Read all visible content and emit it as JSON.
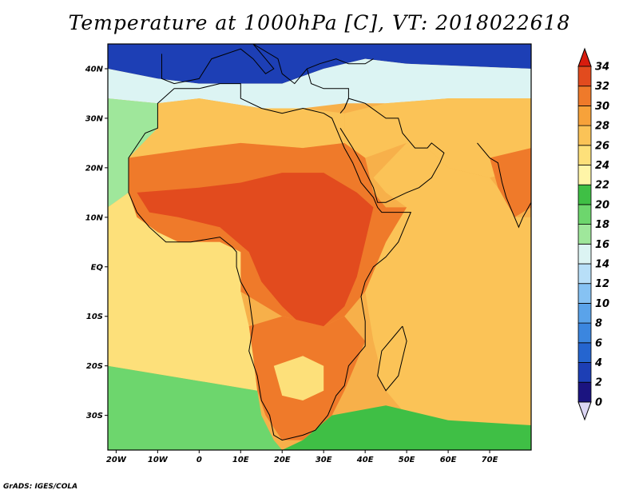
{
  "title": "Temperature at 1000hPa [C], VT: 2018022618",
  "credit": "GrADS: IGES/COLA",
  "map": {
    "lon_range": [
      -22,
      80
    ],
    "lat_range": [
      -37,
      45
    ],
    "lat_ticks": [
      {
        "value": 40,
        "label": "40N"
      },
      {
        "value": 30,
        "label": "30N"
      },
      {
        "value": 20,
        "label": "20N"
      },
      {
        "value": 10,
        "label": "10N"
      },
      {
        "value": 0,
        "label": "EQ"
      },
      {
        "value": -10,
        "label": "10S"
      },
      {
        "value": -20,
        "label": "20S"
      },
      {
        "value": -30,
        "label": "30S"
      }
    ],
    "lon_ticks": [
      {
        "value": -20,
        "label": "20W"
      },
      {
        "value": -10,
        "label": "10W"
      },
      {
        "value": 0,
        "label": "0"
      },
      {
        "value": 10,
        "label": "10E"
      },
      {
        "value": 20,
        "label": "20E"
      },
      {
        "value": 30,
        "label": "30E"
      },
      {
        "value": 40,
        "label": "40E"
      },
      {
        "value": 50,
        "label": "50E"
      },
      {
        "value": 60,
        "label": "60E"
      },
      {
        "value": 70,
        "label": "70E"
      }
    ]
  },
  "colorbar": {
    "levels": [
      0,
      2,
      4,
      6,
      8,
      10,
      12,
      14,
      16,
      18,
      20,
      22,
      24,
      26,
      28,
      30,
      32,
      34
    ],
    "colors": [
      "#1b1480",
      "#1d3fb5",
      "#2565cf",
      "#3b86df",
      "#5aa3ea",
      "#86c2f3",
      "#b8dff8",
      "#dcf4f3",
      "#9fe79b",
      "#6dd66d",
      "#3fbf45",
      "#fff5a8",
      "#fde07a",
      "#fbc357",
      "#f7a23a",
      "#ef7a2a",
      "#e24b1e",
      "#cf2012"
    ],
    "under_color": "#dcd6f4",
    "over_color": "#d81c0e"
  },
  "regions": [
    {
      "name": "europe",
      "temp": 2,
      "points": [
        [
          -22,
          45
        ],
        [
          80,
          45
        ],
        [
          80,
          40
        ],
        [
          50,
          41
        ],
        [
          40,
          42
        ],
        [
          30,
          40
        ],
        [
          20,
          37
        ],
        [
          10,
          37
        ],
        [
          0,
          37
        ],
        [
          -10,
          38
        ],
        [
          -22,
          40
        ]
      ]
    },
    {
      "name": "mediterranean",
      "temp": 15,
      "points": [
        [
          -22,
          40
        ],
        [
          -10,
          38
        ],
        [
          0,
          37
        ],
        [
          10,
          37
        ],
        [
          20,
          37
        ],
        [
          30,
          40
        ],
        [
          40,
          42
        ],
        [
          50,
          41
        ],
        [
          80,
          40
        ],
        [
          80,
          34
        ],
        [
          60,
          34
        ],
        [
          45,
          33
        ],
        [
          35,
          33
        ],
        [
          25,
          32
        ],
        [
          15,
          32
        ],
        [
          0,
          34
        ],
        [
          -10,
          33
        ],
        [
          -22,
          34
        ]
      ]
    },
    {
      "name": "north-atlantic",
      "temp": 17,
      "points": [
        [
          -22,
          34
        ],
        [
          -10,
          33
        ],
        [
          -10,
          28
        ],
        [
          -17,
          22
        ],
        [
          -17,
          15
        ],
        [
          -22,
          12
        ]
      ]
    },
    {
      "name": "sahara-north",
      "temp": 27,
      "points": [
        [
          -10,
          33
        ],
        [
          0,
          34
        ],
        [
          15,
          32
        ],
        [
          25,
          32
        ],
        [
          35,
          31
        ],
        [
          35,
          25
        ],
        [
          25,
          24
        ],
        [
          10,
          25
        ],
        [
          0,
          24
        ],
        [
          -17,
          22
        ],
        [
          -10,
          28
        ]
      ]
    },
    {
      "name": "middle-east",
      "temp": 26,
      "points": [
        [
          35,
          31
        ],
        [
          45,
          33
        ],
        [
          60,
          34
        ],
        [
          80,
          34
        ],
        [
          80,
          20
        ],
        [
          70,
          18
        ],
        [
          60,
          20
        ],
        [
          55,
          24
        ],
        [
          50,
          25
        ],
        [
          40,
          22
        ],
        [
          35,
          25
        ]
      ]
    },
    {
      "name": "india",
      "temp": 30,
      "points": [
        [
          70,
          22
        ],
        [
          80,
          24
        ],
        [
          80,
          12
        ],
        [
          76,
          10
        ],
        [
          72,
          16
        ]
      ]
    },
    {
      "name": "arabian-sea",
      "temp": 26,
      "points": [
        [
          50,
          25
        ],
        [
          55,
          24
        ],
        [
          60,
          20
        ],
        [
          70,
          18
        ],
        [
          72,
          16
        ],
        [
          76,
          10
        ],
        [
          80,
          10
        ],
        [
          80,
          -37
        ],
        [
          60,
          -37
        ],
        [
          50,
          -30
        ],
        [
          45,
          -25
        ],
        [
          42,
          -15
        ],
        [
          40,
          -5
        ],
        [
          45,
          5
        ],
        [
          50,
          12
        ],
        [
          45,
          15
        ],
        [
          42,
          18
        ]
      ]
    },
    {
      "name": "sahel",
      "temp": 31,
      "points": [
        [
          -17,
          22
        ],
        [
          0,
          24
        ],
        [
          10,
          25
        ],
        [
          25,
          24
        ],
        [
          35,
          25
        ],
        [
          40,
          22
        ],
        [
          42,
          15
        ],
        [
          45,
          12
        ],
        [
          50,
          12
        ],
        [
          45,
          5
        ],
        [
          40,
          -5
        ],
        [
          35,
          -10
        ],
        [
          30,
          -12
        ],
        [
          20,
          -10
        ],
        [
          10,
          -5
        ],
        [
          10,
          3
        ],
        [
          5,
          5
        ],
        [
          -5,
          5
        ],
        [
          -10,
          7
        ],
        [
          -15,
          10
        ],
        [
          -17,
          15
        ]
      ]
    },
    {
      "name": "central-africa",
      "temp": 33,
      "points": [
        [
          -15,
          15
        ],
        [
          0,
          16
        ],
        [
          10,
          17
        ],
        [
          20,
          19
        ],
        [
          30,
          19
        ],
        [
          38,
          15
        ],
        [
          42,
          12
        ],
        [
          40,
          5
        ],
        [
          38,
          -2
        ],
        [
          35,
          -8
        ],
        [
          30,
          -12
        ],
        [
          25,
          -12
        ],
        [
          20,
          -8
        ],
        [
          15,
          -3
        ],
        [
          12,
          3
        ],
        [
          5,
          8
        ],
        [
          -5,
          10
        ],
        [
          -12,
          11
        ]
      ]
    },
    {
      "name": "south-atlantic",
      "temp": 25,
      "points": [
        [
          -22,
          12
        ],
        [
          -17,
          15
        ],
        [
          -15,
          10
        ],
        [
          -10,
          7
        ],
        [
          -5,
          5
        ],
        [
          5,
          5
        ],
        [
          10,
          3
        ],
        [
          10,
          -5
        ],
        [
          12,
          -12
        ],
        [
          13,
          -18
        ],
        [
          14,
          -25
        ],
        [
          -22,
          -20
        ]
      ]
    },
    {
      "name": "south-atlantic-cool",
      "temp": 19,
      "points": [
        [
          -22,
          -20
        ],
        [
          14,
          -25
        ],
        [
          15,
          -30
        ],
        [
          18,
          -35
        ],
        [
          20,
          -37
        ],
        [
          -22,
          -37
        ]
      ]
    },
    {
      "name": "southern-africa",
      "temp": 31,
      "points": [
        [
          12,
          -12
        ],
        [
          20,
          -10
        ],
        [
          30,
          -12
        ],
        [
          35,
          -10
        ],
        [
          40,
          -15
        ],
        [
          35,
          -25
        ],
        [
          32,
          -30
        ],
        [
          25,
          -35
        ],
        [
          20,
          -35
        ],
        [
          16,
          -30
        ],
        [
          14,
          -25
        ],
        [
          13,
          -18
        ]
      ]
    },
    {
      "name": "kalahari",
      "temp": 25,
      "points": [
        [
          18,
          -20
        ],
        [
          25,
          -18
        ],
        [
          30,
          -20
        ],
        [
          30,
          -25
        ],
        [
          25,
          -27
        ],
        [
          20,
          -26
        ]
      ]
    },
    {
      "name": "southern-ocean",
      "temp": 21,
      "points": [
        [
          25,
          -35
        ],
        [
          32,
          -30
        ],
        [
          45,
          -28
        ],
        [
          60,
          -31
        ],
        [
          80,
          -32
        ],
        [
          80,
          -37
        ],
        [
          20,
          -37
        ]
      ]
    },
    {
      "name": "madagascar",
      "temp": 27,
      "points": [
        [
          49,
          -12
        ],
        [
          50,
          -15
        ],
        [
          48,
          -22
        ],
        [
          45,
          -25
        ],
        [
          43,
          -22
        ],
        [
          44,
          -17
        ],
        [
          47,
          -14
        ]
      ]
    }
  ],
  "outlines": [
    {
      "name": "africa-coast",
      "points": [
        [
          -6,
          36
        ],
        [
          -10,
          33
        ],
        [
          -10,
          28
        ],
        [
          -13,
          27
        ],
        [
          -17,
          22
        ],
        [
          -17,
          15
        ],
        [
          -15,
          11
        ],
        [
          -12,
          8
        ],
        [
          -8,
          5
        ],
        [
          -2,
          5
        ],
        [
          5,
          6
        ],
        [
          8,
          4
        ],
        [
          9,
          3
        ],
        [
          9,
          0
        ],
        [
          10,
          -3
        ],
        [
          12,
          -6
        ],
        [
          13,
          -12
        ],
        [
          12,
          -17
        ],
        [
          14,
          -22
        ],
        [
          15,
          -27
        ],
        [
          17,
          -30
        ],
        [
          18,
          -34
        ],
        [
          20,
          -35
        ],
        [
          25,
          -34
        ],
        [
          28,
          -33
        ],
        [
          31,
          -30
        ],
        [
          33,
          -26
        ],
        [
          35,
          -24
        ],
        [
          36,
          -20
        ],
        [
          40,
          -16
        ],
        [
          40,
          -11
        ],
        [
          39,
          -6
        ],
        [
          40,
          -3
        ],
        [
          42,
          0
        ],
        [
          45,
          2
        ],
        [
          48,
          5
        ],
        [
          51,
          11
        ],
        [
          44,
          11
        ],
        [
          43,
          12
        ],
        [
          42,
          14
        ],
        [
          39,
          17
        ],
        [
          37,
          21
        ],
        [
          35,
          24
        ],
        [
          33,
          28
        ],
        [
          32,
          30
        ],
        [
          30,
          31
        ],
        [
          25,
          32
        ],
        [
          20,
          31
        ],
        [
          15,
          32
        ],
        [
          10,
          34
        ],
        [
          10,
          37
        ],
        [
          5,
          37
        ],
        [
          0,
          36
        ],
        [
          -6,
          36
        ]
      ]
    },
    {
      "name": "arabia-coast",
      "points": [
        [
          34,
          28
        ],
        [
          37,
          24
        ],
        [
          39,
          21
        ],
        [
          42,
          16
        ],
        [
          43,
          13
        ],
        [
          45,
          13
        ],
        [
          50,
          15
        ],
        [
          53,
          16
        ],
        [
          56,
          18
        ],
        [
          58,
          21
        ],
        [
          59,
          23
        ],
        [
          56,
          25
        ],
        [
          55,
          24
        ],
        [
          52,
          24
        ],
        [
          50,
          26
        ],
        [
          49,
          27
        ],
        [
          48,
          30
        ],
        [
          45,
          30
        ],
        [
          40,
          33
        ],
        [
          36,
          34
        ],
        [
          35,
          32
        ]
      ]
    },
    {
      "name": "india-coast",
      "points": [
        [
          67,
          25
        ],
        [
          70,
          22
        ],
        [
          72,
          21
        ],
        [
          73,
          17
        ],
        [
          74,
          14
        ],
        [
          76,
          10
        ],
        [
          77,
          8
        ],
        [
          78,
          10
        ],
        [
          80,
          13
        ]
      ]
    },
    {
      "name": "madagascar-coast",
      "points": [
        [
          49,
          -12
        ],
        [
          50,
          -15
        ],
        [
          48,
          -22
        ],
        [
          45,
          -25
        ],
        [
          43,
          -22
        ],
        [
          44,
          -17
        ],
        [
          47,
          -14
        ],
        [
          49,
          -12
        ]
      ]
    },
    {
      "name": "europe-coast",
      "points": [
        [
          -9,
          43
        ],
        [
          -9,
          38
        ],
        [
          -6,
          37
        ],
        [
          0,
          38
        ],
        [
          3,
          42
        ],
        [
          10,
          44
        ],
        [
          13,
          42
        ],
        [
          16,
          39
        ],
        [
          18,
          40
        ],
        [
          16,
          42
        ],
        [
          13,
          45
        ],
        [
          19,
          42
        ],
        [
          20,
          39
        ],
        [
          23,
          37
        ],
        [
          26,
          40
        ],
        [
          29,
          41
        ],
        [
          33,
          42
        ],
        [
          36,
          41
        ],
        [
          40,
          41
        ],
        [
          42,
          42
        ]
      ]
    },
    {
      "name": "anatolia-levant",
      "points": [
        [
          26,
          40
        ],
        [
          27,
          37
        ],
        [
          30,
          36
        ],
        [
          36,
          36
        ],
        [
          36,
          34
        ],
        [
          35,
          32
        ],
        [
          34,
          31
        ]
      ]
    }
  ]
}
